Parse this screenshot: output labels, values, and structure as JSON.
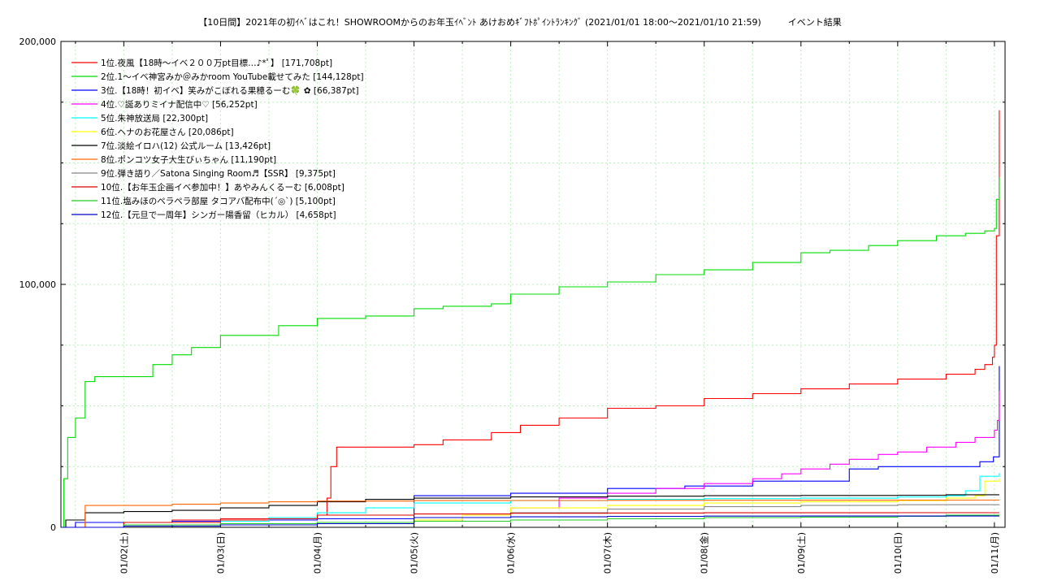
{
  "chart_data": {
    "type": "line",
    "title": "【10日間】2021年の初ｲﾍﾞはこれ！SHOWROOMからのお年玉ｲﾍﾞﾝﾄ あけおめｷﾞﾌﾄﾎﾟｲﾝﾄﾗﾝｷﾝｸﾞ (2021/01/01 18:00～2021/01/10 21:59)　　　イベント結果",
    "xlabel": "",
    "ylabel": "",
    "ylim": [
      0,
      200000
    ],
    "xlim": [
      0.35,
      10.11
    ],
    "yticks": [
      0,
      100000,
      200000
    ],
    "ytick_labels": [
      "0",
      "100,000",
      "200,000"
    ],
    "xticks": [
      1,
      2,
      3,
      4,
      5,
      6,
      7,
      8,
      9,
      10
    ],
    "xtick_labels": [
      "01/02(土)",
      "01/03(日)",
      "01/04(月)",
      "01/05(火)",
      "01/06(水)",
      "01/07(木)",
      "01/08(金)",
      "01/09(土)",
      "01/10(日)",
      "01/11(月)"
    ],
    "grid": true,
    "legend_position": "top-left",
    "series": [
      {
        "name": "1位.夜風【18時～イベ２００万pt目標…♪*ﾟ】 [171,708pt]",
        "color": "#ff0000",
        "x": [
          0.35,
          0.6,
          1.5,
          2.5,
          3.0,
          3.1,
          3.14,
          3.2,
          4.0,
          4.3,
          4.8,
          5.1,
          5.5,
          6.0,
          6.5,
          7.0,
          7.5,
          8.0,
          8.5,
          9.0,
          9.5,
          9.8,
          9.9,
          9.98,
          10.0,
          10.02,
          10.05
        ],
        "values": [
          0,
          2000,
          3000,
          4000,
          5000,
          12000,
          25000,
          33000,
          34000,
          36000,
          39000,
          42000,
          45000,
          49000,
          50000,
          53000,
          55000,
          57000,
          59000,
          61000,
          63000,
          65000,
          67000,
          70000,
          75000,
          120000,
          171708
        ]
      },
      {
        "name": "2位.1～イベ神宮みか＠みかroom YouTube載せてみた [144,128pt]",
        "color": "#00dd00",
        "x": [
          0.35,
          0.38,
          0.42,
          0.5,
          0.6,
          0.7,
          0.9,
          1.3,
          1.5,
          1.7,
          2.0,
          2.3,
          2.6,
          3.0,
          3.5,
          4.0,
          4.3,
          4.8,
          5.0,
          5.5,
          6.0,
          6.5,
          7.0,
          7.5,
          8.0,
          8.3,
          8.7,
          9.0,
          9.4,
          9.7,
          9.9,
          10.0,
          10.02,
          10.05
        ],
        "values": [
          0,
          20000,
          37000,
          45000,
          60000,
          62000,
          62000,
          67000,
          71000,
          74000,
          79000,
          79000,
          83000,
          86000,
          87000,
          90000,
          91000,
          92000,
          96000,
          99000,
          101000,
          104000,
          106000,
          109000,
          113000,
          114000,
          116000,
          118000,
          120000,
          121000,
          122000,
          123000,
          135000,
          144128
        ]
      },
      {
        "name": "3位.【18時！初イベ】笑みがこぼれる果穂るーむ🍀 ✿ [66,387pt]",
        "color": "#0000ff",
        "x": [
          0.35,
          0.5,
          1.5,
          2.5,
          3.0,
          4.0,
          5.0,
          6.0,
          6.8,
          7.5,
          8.5,
          8.8,
          9.0,
          9.5,
          9.85,
          9.99,
          10.05
        ],
        "values": [
          0,
          2000,
          2500,
          3000,
          3500,
          13000,
          14000,
          16000,
          17000,
          19000,
          24000,
          25000,
          25000,
          25000,
          27000,
          29000,
          66387
        ]
      },
      {
        "name": "4位.♡誕ありミイナ配信中♡ [56,252pt]",
        "color": "#ff00ff",
        "x": [
          0.35,
          1.0,
          2.0,
          3.0,
          4.0,
          4.5,
          5.0,
          5.5,
          6.0,
          6.5,
          7.0,
          7.5,
          7.8,
          8.0,
          8.3,
          8.5,
          8.8,
          9.0,
          9.3,
          9.6,
          9.8,
          10.0,
          10.03,
          10.05
        ],
        "values": [
          0,
          1000,
          1500,
          2000,
          2500,
          4000,
          8000,
          12000,
          14000,
          16000,
          18000,
          20000,
          22000,
          24000,
          26000,
          28000,
          30000,
          31000,
          33000,
          35000,
          37000,
          40000,
          44000,
          56252
        ]
      },
      {
        "name": "5位.朱神放送局 [22,300pt]",
        "color": "#00ffff",
        "x": [
          0.35,
          1.0,
          2.0,
          2.5,
          3.0,
          3.5,
          4.0,
          5.0,
          6.0,
          7.0,
          8.0,
          9.0,
          9.5,
          9.7,
          9.85,
          10.05
        ],
        "values": [
          0,
          1000,
          2500,
          4000,
          6000,
          8000,
          10000,
          11000,
          11500,
          11800,
          12000,
          12500,
          13000,
          15000,
          21000,
          22300
        ]
      },
      {
        "name": "6位.ヘナのお花屋さん [20,086pt]",
        "color": "#ffff00",
        "x": [
          0.35,
          1.0,
          2.0,
          3.0,
          4.0,
          4.5,
          5.0,
          6.0,
          7.0,
          8.0,
          9.0,
          9.5,
          9.8,
          9.9,
          10.05
        ],
        "values": [
          0,
          500,
          1000,
          1500,
          3000,
          5000,
          8000,
          9000,
          10000,
          10500,
          11000,
          12000,
          13000,
          19000,
          20086
        ]
      },
      {
        "name": "7位.淡絵イロハ(12) 公式ルーム [13,426pt]",
        "color": "#000000",
        "x": [
          0.35,
          0.4,
          0.6,
          1.0,
          1.5,
          2.0,
          2.5,
          3.0,
          3.5,
          4.0,
          5.0,
          6.0,
          7.0,
          8.0,
          9.0,
          9.5,
          10.05
        ],
        "values": [
          0,
          3000,
          6000,
          6500,
          7000,
          8000,
          9000,
          10500,
          11500,
          12000,
          12500,
          12800,
          13000,
          13100,
          13200,
          13400,
          13426
        ]
      },
      {
        "name": "8位.ポンコツ女子大生びぃちゃん [11,190pt]",
        "color": "#ff6600",
        "x": [
          0.35,
          0.6,
          1.0,
          1.5,
          2.0,
          2.5,
          3.0,
          4.0,
          5.0,
          6.0,
          7.0,
          8.0,
          9.0,
          10.05
        ],
        "values": [
          0,
          9000,
          9000,
          9500,
          10000,
          10500,
          10800,
          11000,
          11050,
          11100,
          11150,
          11170,
          11190,
          11190
        ]
      },
      {
        "name": "9位.弾き語り／Satona Singing Room♬【SSR】 [9,375pt]",
        "color": "#888888",
        "x": [
          0.35,
          1.0,
          2.0,
          3.0,
          4.0,
          5.0,
          6.0,
          7.0,
          8.0,
          9.0,
          10.05
        ],
        "values": [
          0,
          500,
          1000,
          2000,
          4000,
          6000,
          7500,
          8500,
          9000,
          9300,
          9375
        ]
      },
      {
        "name": "10位.【お年玉企画イベ参加中！】あやみんくるーむ [6,008pt]",
        "color": "#dd0000",
        "x": [
          0.35,
          1.0,
          2.0,
          3.0,
          4.0,
          5.0,
          6.0,
          7.0,
          8.0,
          9.0,
          10.05
        ],
        "values": [
          0,
          2000,
          3500,
          5000,
          5500,
          5800,
          5900,
          6000,
          6000,
          6008,
          6008
        ]
      },
      {
        "name": "11位.塩みほのペラペラ部屋 タコアバ配布中(ˊ◎ˋ) [5,100pt]",
        "color": "#22cc22",
        "x": [
          0.35,
          1.0,
          2.0,
          3.0,
          4.0,
          5.0,
          6.0,
          7.0,
          8.0,
          9.0,
          9.5,
          10.05
        ],
        "values": [
          0,
          1000,
          1500,
          2000,
          2500,
          3000,
          3500,
          4000,
          4200,
          4500,
          5000,
          5100
        ]
      },
      {
        "name": "12位.【元旦で一周年】シンガー陽香留（ヒカル） [4,658pt]",
        "color": "#0000cc",
        "x": [
          0.35,
          1.0,
          2.0,
          3.0,
          4.0,
          5.0,
          6.0,
          7.0,
          8.0,
          9.0,
          10.05
        ],
        "values": [
          0,
          500,
          1000,
          1500,
          4000,
          4300,
          4500,
          4600,
          4650,
          4658,
          4658
        ]
      }
    ]
  }
}
